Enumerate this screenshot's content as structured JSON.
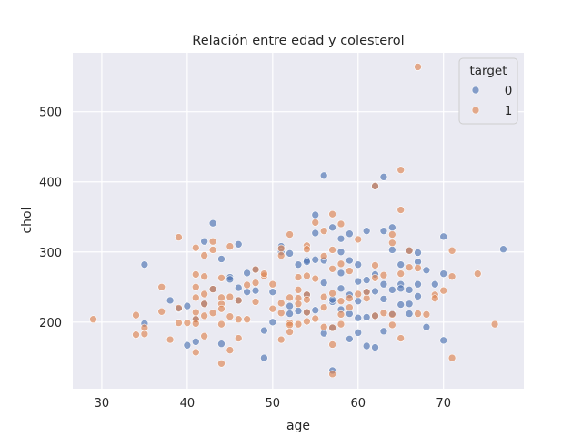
{
  "chart_data": {
    "type": "scatter",
    "title": "Relación entre edad y colesterol",
    "xlabel": "age",
    "ylabel": "chol",
    "xlim": [
      26.6,
      79.4
    ],
    "ylim": [
      105,
      584
    ],
    "xticks": [
      "30",
      "40",
      "50",
      "60",
      "70"
    ],
    "yticks": [
      "200",
      "300",
      "400",
      "500"
    ],
    "grid": true,
    "legend": {
      "title": "target",
      "placement": "top-right"
    },
    "series": [
      {
        "name": "0",
        "color": "#4c72b0",
        "points": [
          [
            35,
            282
          ],
          [
            35,
            198
          ],
          [
            38,
            231
          ],
          [
            39,
            219
          ],
          [
            40,
            223
          ],
          [
            40,
            167
          ],
          [
            41,
            172
          ],
          [
            41,
            204
          ],
          [
            42,
            315
          ],
          [
            42,
            226
          ],
          [
            43,
            341
          ],
          [
            43,
            247
          ],
          [
            44,
            290
          ],
          [
            44,
            169
          ],
          [
            45,
            264
          ],
          [
            45,
            261
          ],
          [
            46,
            311
          ],
          [
            46,
            249
          ],
          [
            46,
            231
          ],
          [
            47,
            270
          ],
          [
            47,
            243
          ],
          [
            48,
            275
          ],
          [
            48,
            245
          ],
          [
            49,
            149
          ],
          [
            49,
            188
          ],
          [
            50,
            243
          ],
          [
            50,
            200
          ],
          [
            51,
            308
          ],
          [
            51,
            300
          ],
          [
            52,
            212
          ],
          [
            52,
            223
          ],
          [
            52,
            298
          ],
          [
            53,
            282
          ],
          [
            53,
            216
          ],
          [
            54,
            288
          ],
          [
            54,
            239
          ],
          [
            54,
            286
          ],
          [
            54,
            214
          ],
          [
            55,
            353
          ],
          [
            55,
            327
          ],
          [
            55,
            289
          ],
          [
            55,
            217
          ],
          [
            56,
            409
          ],
          [
            56,
            288
          ],
          [
            56,
            256
          ],
          [
            56,
            184
          ],
          [
            57,
            335
          ],
          [
            57,
            229
          ],
          [
            57,
            232
          ],
          [
            57,
            131
          ],
          [
            57,
            192
          ],
          [
            58,
            319
          ],
          [
            58,
            300
          ],
          [
            58,
            270
          ],
          [
            58,
            248
          ],
          [
            58,
            218
          ],
          [
            59,
            326
          ],
          [
            59,
            288
          ],
          [
            59,
            239
          ],
          [
            59,
            176
          ],
          [
            59,
            212
          ],
          [
            60,
            282
          ],
          [
            60,
            258
          ],
          [
            60,
            230
          ],
          [
            60,
            185
          ],
          [
            60,
            206
          ],
          [
            61,
            330
          ],
          [
            61,
            260
          ],
          [
            61,
            207
          ],
          [
            61,
            166
          ],
          [
            61,
            243
          ],
          [
            62,
            394
          ],
          [
            62,
            268
          ],
          [
            62,
            244
          ],
          [
            62,
            164
          ],
          [
            62,
            209
          ],
          [
            63,
            407
          ],
          [
            63,
            330
          ],
          [
            63,
            254
          ],
          [
            63,
            233
          ],
          [
            63,
            187
          ],
          [
            64,
            335
          ],
          [
            64,
            303
          ],
          [
            64,
            246
          ],
          [
            64,
            212
          ],
          [
            65,
            282
          ],
          [
            65,
            254
          ],
          [
            65,
            248
          ],
          [
            65,
            225
          ],
          [
            66,
            246
          ],
          [
            66,
            226
          ],
          [
            66,
            302
          ],
          [
            66,
            212
          ],
          [
            67,
            299
          ],
          [
            67,
            286
          ],
          [
            67,
            254
          ],
          [
            67,
            237
          ],
          [
            68,
            274
          ],
          [
            68,
            193
          ],
          [
            69,
            254
          ],
          [
            70,
            322
          ],
          [
            70,
            269
          ],
          [
            70,
            174
          ],
          [
            77,
            304
          ]
        ]
      },
      {
        "name": "1",
        "color": "#dd8452",
        "points": [
          [
            29,
            204
          ],
          [
            34,
            210
          ],
          [
            34,
            182
          ],
          [
            35,
            183
          ],
          [
            35,
            192
          ],
          [
            37,
            250
          ],
          [
            37,
            215
          ],
          [
            38,
            175
          ],
          [
            39,
            321
          ],
          [
            39,
            220
          ],
          [
            39,
            199
          ],
          [
            40,
            199
          ],
          [
            41,
            306
          ],
          [
            41,
            268
          ],
          [
            41,
            250
          ],
          [
            41,
            235
          ],
          [
            41,
            214
          ],
          [
            41,
            204
          ],
          [
            41,
            198
          ],
          [
            41,
            157
          ],
          [
            42,
            295
          ],
          [
            42,
            265
          ],
          [
            42,
            240
          ],
          [
            42,
            226
          ],
          [
            42,
            209
          ],
          [
            42,
            180
          ],
          [
            43,
            315
          ],
          [
            43,
            303
          ],
          [
            43,
            247
          ],
          [
            43,
            213
          ],
          [
            44,
            263
          ],
          [
            44,
            226
          ],
          [
            44,
            219
          ],
          [
            44,
            235
          ],
          [
            44,
            197
          ],
          [
            44,
            141
          ],
          [
            45,
            308
          ],
          [
            45,
            236
          ],
          [
            45,
            208
          ],
          [
            45,
            160
          ],
          [
            46,
            231
          ],
          [
            46,
            204
          ],
          [
            46,
            177
          ],
          [
            47,
            253
          ],
          [
            47,
            204
          ],
          [
            48,
            275
          ],
          [
            48,
            256
          ],
          [
            48,
            229
          ],
          [
            49,
            266
          ],
          [
            49,
            269
          ],
          [
            50,
            254
          ],
          [
            50,
            219
          ],
          [
            51,
            305
          ],
          [
            51,
            295
          ],
          [
            51,
            227
          ],
          [
            51,
            213
          ],
          [
            51,
            175
          ],
          [
            52,
            325
          ],
          [
            52,
            235
          ],
          [
            52,
            199
          ],
          [
            52,
            196
          ],
          [
            52,
            186
          ],
          [
            53,
            264
          ],
          [
            53,
            246
          ],
          [
            53,
            234
          ],
          [
            53,
            226
          ],
          [
            53,
            197
          ],
          [
            54,
            309
          ],
          [
            54,
            304
          ],
          [
            54,
            266
          ],
          [
            54,
            239
          ],
          [
            54,
            232
          ],
          [
            54,
            214
          ],
          [
            54,
            201
          ],
          [
            55,
            342
          ],
          [
            55,
            262
          ],
          [
            55,
            205
          ],
          [
            56,
            330
          ],
          [
            56,
            294
          ],
          [
            56,
            236
          ],
          [
            56,
            221
          ],
          [
            56,
            193
          ],
          [
            57,
            354
          ],
          [
            57,
            303
          ],
          [
            57,
            276
          ],
          [
            57,
            241
          ],
          [
            57,
            192
          ],
          [
            57,
            168
          ],
          [
            57,
            126
          ],
          [
            58,
            340
          ],
          [
            58,
            283
          ],
          [
            58,
            230
          ],
          [
            58,
            211
          ],
          [
            58,
            197
          ],
          [
            59,
            273
          ],
          [
            59,
            234
          ],
          [
            59,
            221
          ],
          [
            60,
            318
          ],
          [
            60,
            240
          ],
          [
            61,
            234
          ],
          [
            61,
            243
          ],
          [
            62,
            394
          ],
          [
            62,
            281
          ],
          [
            62,
            263
          ],
          [
            62,
            209
          ],
          [
            63,
            267
          ],
          [
            63,
            213
          ],
          [
            64,
            325
          ],
          [
            64,
            313
          ],
          [
            64,
            211
          ],
          [
            64,
            196
          ],
          [
            65,
            417
          ],
          [
            65,
            360
          ],
          [
            65,
            269
          ],
          [
            65,
            177
          ],
          [
            66,
            302
          ],
          [
            66,
            278
          ],
          [
            67,
            564
          ],
          [
            67,
            277
          ],
          [
            67,
            212
          ],
          [
            68,
            211
          ],
          [
            69,
            239
          ],
          [
            69,
            234
          ],
          [
            70,
            245
          ],
          [
            71,
            302
          ],
          [
            71,
            265
          ],
          [
            71,
            149
          ],
          [
            74,
            269
          ],
          [
            76,
            197
          ]
        ]
      }
    ]
  }
}
